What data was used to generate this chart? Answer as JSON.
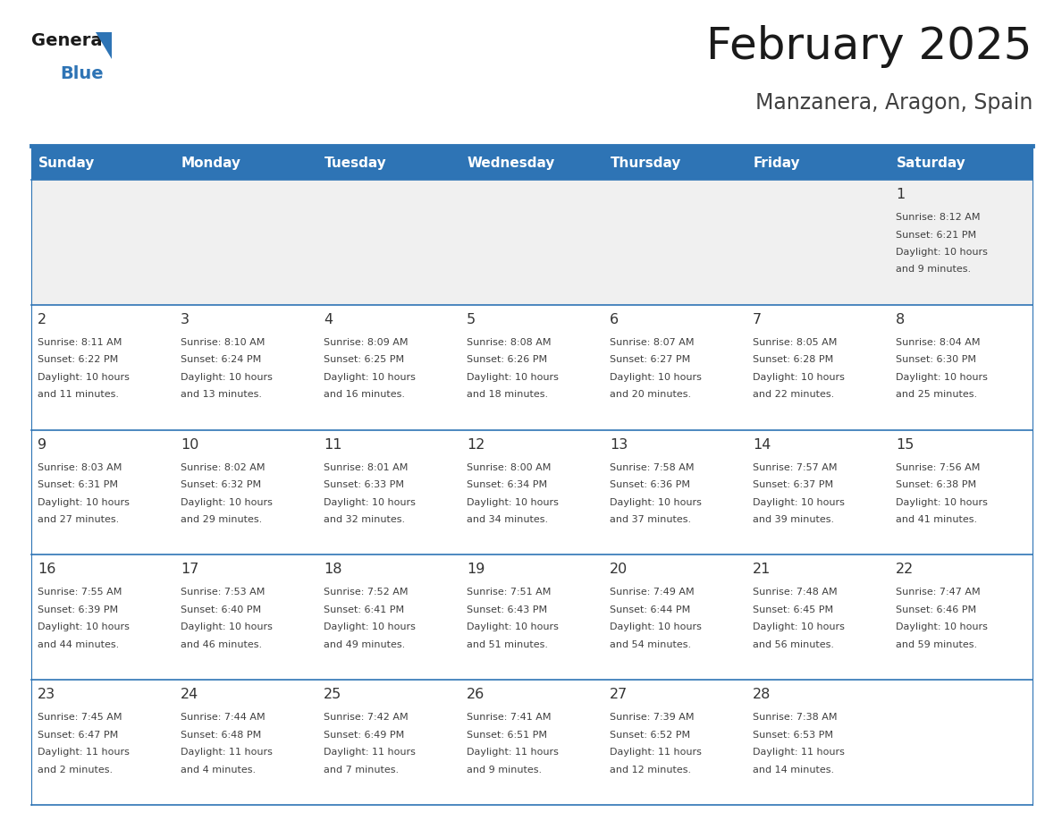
{
  "title": "February 2025",
  "subtitle": "Manzanera, Aragon, Spain",
  "header_bg": "#2E74B5",
  "header_text_color": "#FFFFFF",
  "weekdays": [
    "Sunday",
    "Monday",
    "Tuesday",
    "Wednesday",
    "Thursday",
    "Friday",
    "Saturday"
  ],
  "row_bg_even": "#FFFFFF",
  "row_bg_odd": "#F0F0F0",
  "border_color": "#2E74B5",
  "day_number_color": "#333333",
  "cell_text_color": "#404040",
  "title_color": "#1A1A1A",
  "subtitle_color": "#404040",
  "logo_general_color": "#1A1A1A",
  "logo_blue_color": "#2E74B5",
  "logo_triangle_color": "#2E74B5",
  "calendar": [
    [
      null,
      null,
      null,
      null,
      null,
      null,
      {
        "day": 1,
        "sunrise": "8:12 AM",
        "sunset": "6:21 PM",
        "daylight": "10 hours",
        "daylight2": "and 9 minutes."
      }
    ],
    [
      {
        "day": 2,
        "sunrise": "8:11 AM",
        "sunset": "6:22 PM",
        "daylight": "10 hours",
        "daylight2": "and 11 minutes."
      },
      {
        "day": 3,
        "sunrise": "8:10 AM",
        "sunset": "6:24 PM",
        "daylight": "10 hours",
        "daylight2": "and 13 minutes."
      },
      {
        "day": 4,
        "sunrise": "8:09 AM",
        "sunset": "6:25 PM",
        "daylight": "10 hours",
        "daylight2": "and 16 minutes."
      },
      {
        "day": 5,
        "sunrise": "8:08 AM",
        "sunset": "6:26 PM",
        "daylight": "10 hours",
        "daylight2": "and 18 minutes."
      },
      {
        "day": 6,
        "sunrise": "8:07 AM",
        "sunset": "6:27 PM",
        "daylight": "10 hours",
        "daylight2": "and 20 minutes."
      },
      {
        "day": 7,
        "sunrise": "8:05 AM",
        "sunset": "6:28 PM",
        "daylight": "10 hours",
        "daylight2": "and 22 minutes."
      },
      {
        "day": 8,
        "sunrise": "8:04 AM",
        "sunset": "6:30 PM",
        "daylight": "10 hours",
        "daylight2": "and 25 minutes."
      }
    ],
    [
      {
        "day": 9,
        "sunrise": "8:03 AM",
        "sunset": "6:31 PM",
        "daylight": "10 hours",
        "daylight2": "and 27 minutes."
      },
      {
        "day": 10,
        "sunrise": "8:02 AM",
        "sunset": "6:32 PM",
        "daylight": "10 hours",
        "daylight2": "and 29 minutes."
      },
      {
        "day": 11,
        "sunrise": "8:01 AM",
        "sunset": "6:33 PM",
        "daylight": "10 hours",
        "daylight2": "and 32 minutes."
      },
      {
        "day": 12,
        "sunrise": "8:00 AM",
        "sunset": "6:34 PM",
        "daylight": "10 hours",
        "daylight2": "and 34 minutes."
      },
      {
        "day": 13,
        "sunrise": "7:58 AM",
        "sunset": "6:36 PM",
        "daylight": "10 hours",
        "daylight2": "and 37 minutes."
      },
      {
        "day": 14,
        "sunrise": "7:57 AM",
        "sunset": "6:37 PM",
        "daylight": "10 hours",
        "daylight2": "and 39 minutes."
      },
      {
        "day": 15,
        "sunrise": "7:56 AM",
        "sunset": "6:38 PM",
        "daylight": "10 hours",
        "daylight2": "and 41 minutes."
      }
    ],
    [
      {
        "day": 16,
        "sunrise": "7:55 AM",
        "sunset": "6:39 PM",
        "daylight": "10 hours",
        "daylight2": "and 44 minutes."
      },
      {
        "day": 17,
        "sunrise": "7:53 AM",
        "sunset": "6:40 PM",
        "daylight": "10 hours",
        "daylight2": "and 46 minutes."
      },
      {
        "day": 18,
        "sunrise": "7:52 AM",
        "sunset": "6:41 PM",
        "daylight": "10 hours",
        "daylight2": "and 49 minutes."
      },
      {
        "day": 19,
        "sunrise": "7:51 AM",
        "sunset": "6:43 PM",
        "daylight": "10 hours",
        "daylight2": "and 51 minutes."
      },
      {
        "day": 20,
        "sunrise": "7:49 AM",
        "sunset": "6:44 PM",
        "daylight": "10 hours",
        "daylight2": "and 54 minutes."
      },
      {
        "day": 21,
        "sunrise": "7:48 AM",
        "sunset": "6:45 PM",
        "daylight": "10 hours",
        "daylight2": "and 56 minutes."
      },
      {
        "day": 22,
        "sunrise": "7:47 AM",
        "sunset": "6:46 PM",
        "daylight": "10 hours",
        "daylight2": "and 59 minutes."
      }
    ],
    [
      {
        "day": 23,
        "sunrise": "7:45 AM",
        "sunset": "6:47 PM",
        "daylight": "11 hours",
        "daylight2": "and 2 minutes."
      },
      {
        "day": 24,
        "sunrise": "7:44 AM",
        "sunset": "6:48 PM",
        "daylight": "11 hours",
        "daylight2": "and 4 minutes."
      },
      {
        "day": 25,
        "sunrise": "7:42 AM",
        "sunset": "6:49 PM",
        "daylight": "11 hours",
        "daylight2": "and 7 minutes."
      },
      {
        "day": 26,
        "sunrise": "7:41 AM",
        "sunset": "6:51 PM",
        "daylight": "11 hours",
        "daylight2": "and 9 minutes."
      },
      {
        "day": 27,
        "sunrise": "7:39 AM",
        "sunset": "6:52 PM",
        "daylight": "11 hours",
        "daylight2": "and 12 minutes."
      },
      {
        "day": 28,
        "sunrise": "7:38 AM",
        "sunset": "6:53 PM",
        "daylight": "11 hours",
        "daylight2": "and 14 minutes."
      },
      null
    ]
  ]
}
